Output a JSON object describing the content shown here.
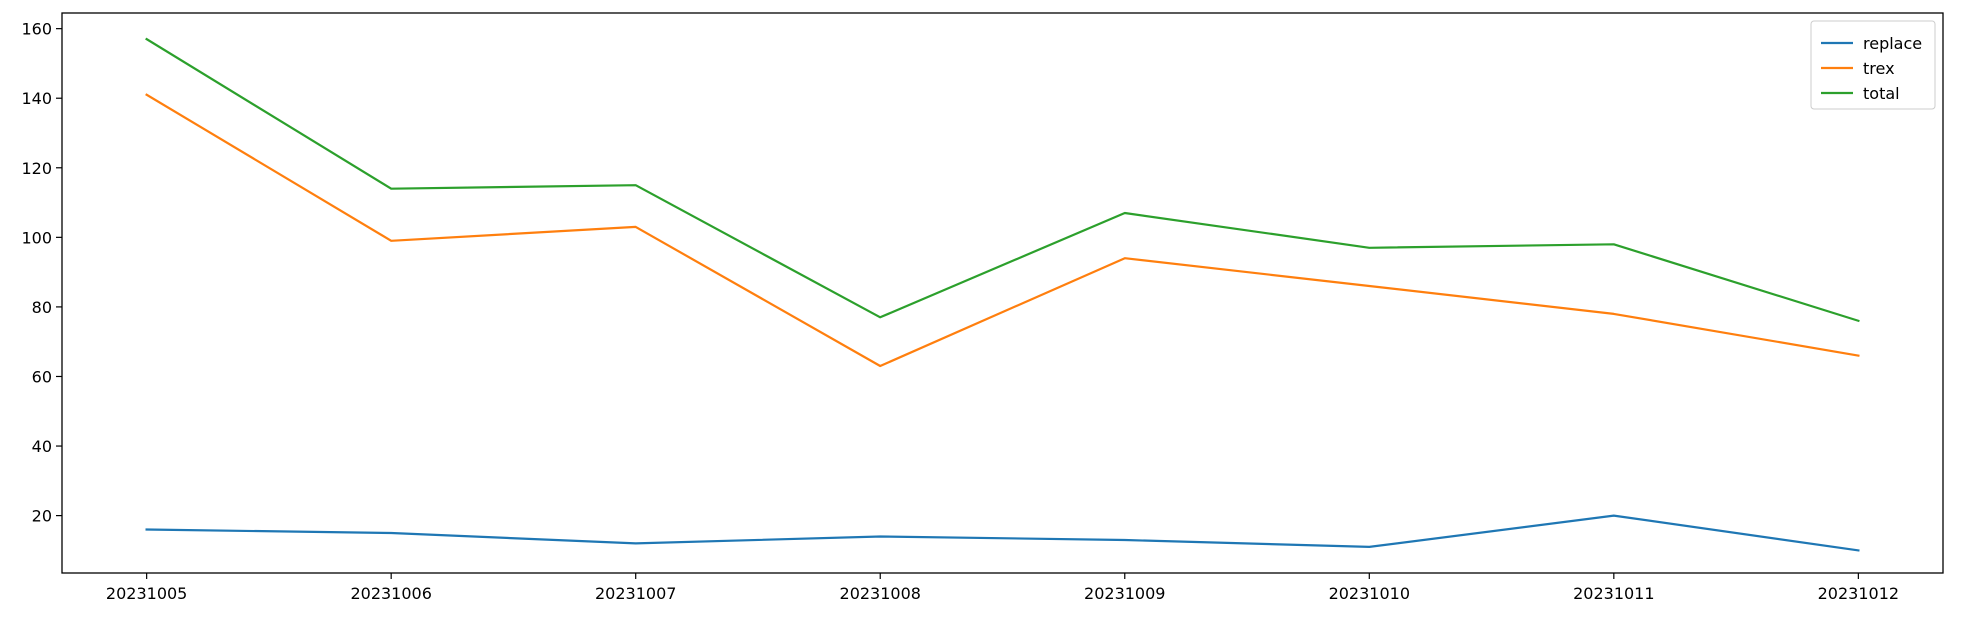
{
  "chart_data": {
    "type": "line",
    "title": "",
    "xlabel": "",
    "ylabel": "",
    "categories": [
      "20231005",
      "20231006",
      "20231007",
      "20231008",
      "20231009",
      "20231010",
      "20231011",
      "20231012"
    ],
    "ylim": [
      3.5,
      164.5
    ],
    "yticks": [
      20,
      40,
      60,
      80,
      100,
      120,
      140,
      160
    ],
    "grid": false,
    "legend_position": "top-right",
    "series": [
      {
        "name": "replace",
        "color": "#1f77b4",
        "values": [
          16,
          15,
          12,
          14,
          13,
          11,
          20,
          10
        ]
      },
      {
        "name": "trex",
        "color": "#ff7f0e",
        "values": [
          141,
          99,
          103,
          63,
          94,
          86,
          78,
          66
        ]
      },
      {
        "name": "total",
        "color": "#2ca02c",
        "values": [
          157,
          114,
          115,
          77,
          107,
          97,
          98,
          76
        ]
      }
    ]
  }
}
